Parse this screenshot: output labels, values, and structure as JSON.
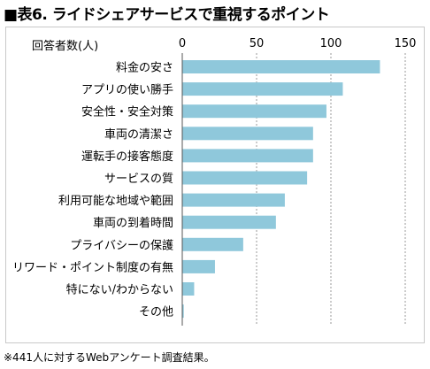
{
  "title": "■表6. ライドシェアサービスで重視するポイント",
  "footnote": "※441人に対するWebアンケート調査結果。",
  "chart_data": {
    "type": "bar",
    "orientation": "horizontal",
    "ylabel": "回答者数(人)",
    "xlim": [
      0,
      150
    ],
    "xticks": [
      0,
      50,
      100,
      150
    ],
    "grid": true,
    "bar_color": "#8fc8db",
    "categories": [
      "料金の安さ",
      "アプリの使い勝手",
      "安全性・安全対策",
      "車両の清潔さ",
      "運転手の接客態度",
      "サービスの質",
      "利用可能な地域や範囲",
      "車両の到着時間",
      "プライバシーの保護",
      "リワード・ポイント制度の有無",
      "特にない/わからない",
      "その他"
    ],
    "values": [
      133,
      108,
      97,
      88,
      88,
      84,
      69,
      63,
      41,
      22,
      8,
      1
    ]
  }
}
